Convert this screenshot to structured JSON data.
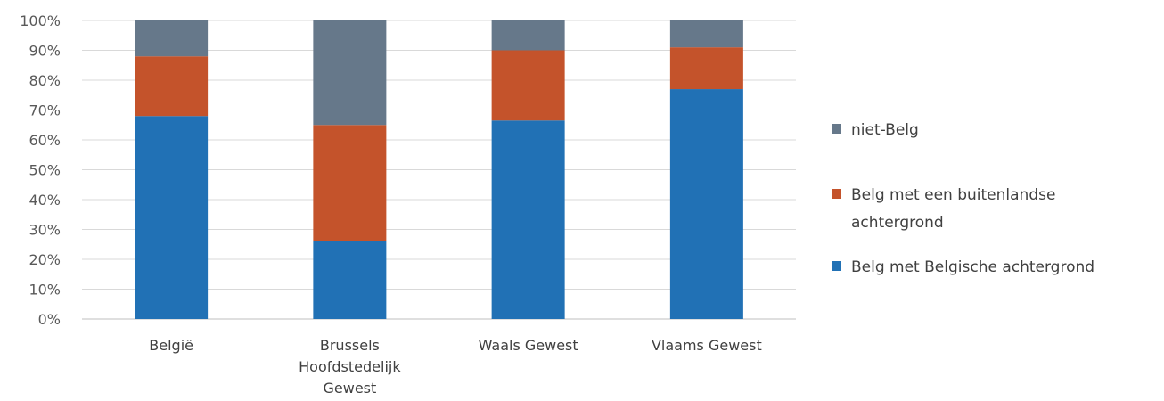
{
  "chart_data": {
    "type": "bar",
    "stacked": true,
    "percent_stacked": true,
    "categories": [
      [
        "België"
      ],
      [
        "Brussels",
        "Hoofdstedelijk",
        "Gewest"
      ],
      [
        "Waals Gewest"
      ],
      [
        "Vlaams Gewest"
      ]
    ],
    "series": [
      {
        "name": "Belg met Belgische achtergrond",
        "color": "#2171b5",
        "values": [
          68,
          26,
          66.5,
          77
        ]
      },
      {
        "name": "Belg met een buitenlandse achtergrond",
        "color": "#c4532b",
        "values": [
          20,
          39,
          23.5,
          14
        ]
      },
      {
        "name": "niet-Belg",
        "color": "#66788a",
        "values": [
          12,
          35,
          10,
          9
        ]
      }
    ],
    "y_ticks": [
      "0%",
      "10%",
      "20%",
      "30%",
      "40%",
      "50%",
      "60%",
      "70%",
      "80%",
      "90%",
      "100%"
    ],
    "ylim": [
      0,
      100
    ],
    "grid": true,
    "legend": {
      "position": "right",
      "entries": [
        {
          "lines": [
            "niet-Belg"
          ],
          "color": "#66788a"
        },
        {
          "lines": [
            "Belg met een buitenlandse",
            "achtergrond"
          ],
          "color": "#c4532b"
        },
        {
          "lines": [
            "Belg met Belgische achtergrond"
          ],
          "color": "#2171b5"
        }
      ]
    }
  }
}
